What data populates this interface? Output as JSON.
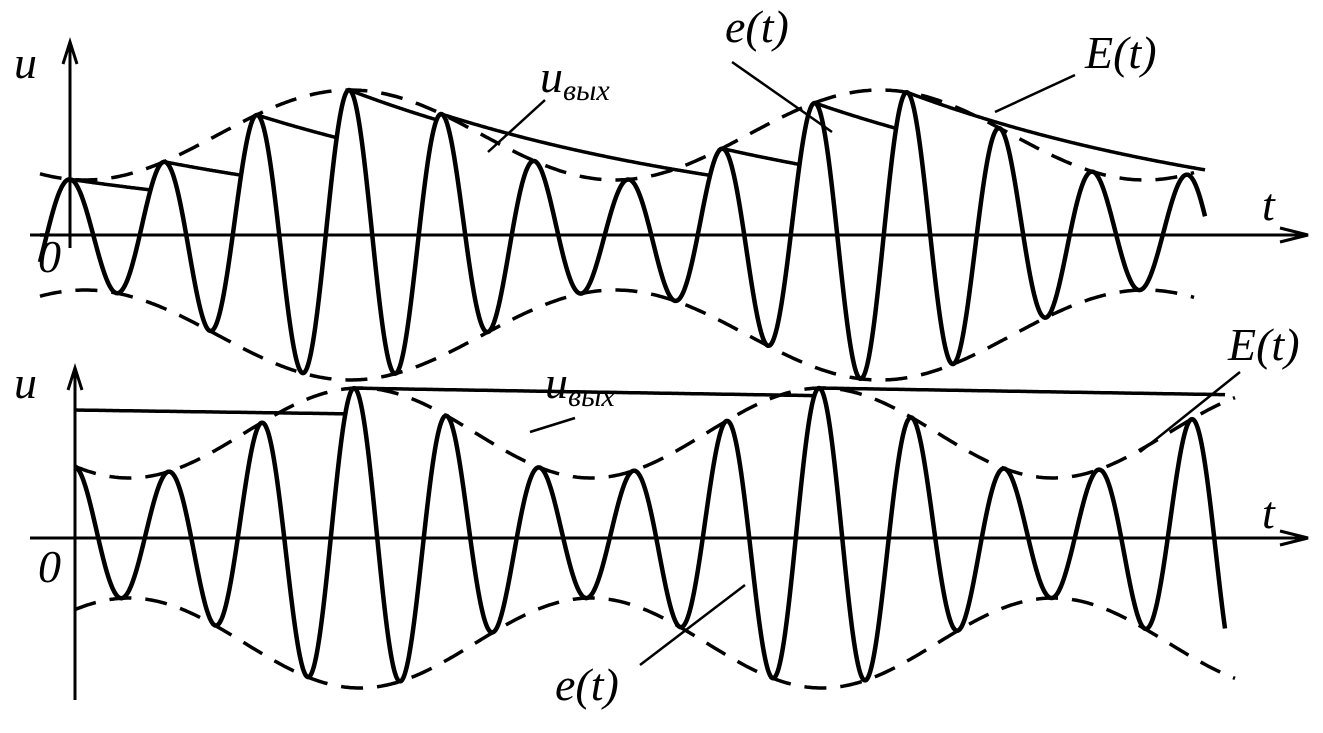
{
  "panels": [
    {
      "axis_label": "u",
      "origin_label": "0",
      "time_label": "t",
      "output_label": {
        "main": "u",
        "sub": "вых"
      },
      "carrier_label": "e(t)",
      "envelope_label": "E(t)"
    },
    {
      "axis_label": "u",
      "origin_label": "0",
      "time_label": "t",
      "output_label": {
        "main": "u",
        "sub": "вых"
      },
      "carrier_label": "e(t)",
      "envelope_label": "E(t)"
    }
  ]
}
